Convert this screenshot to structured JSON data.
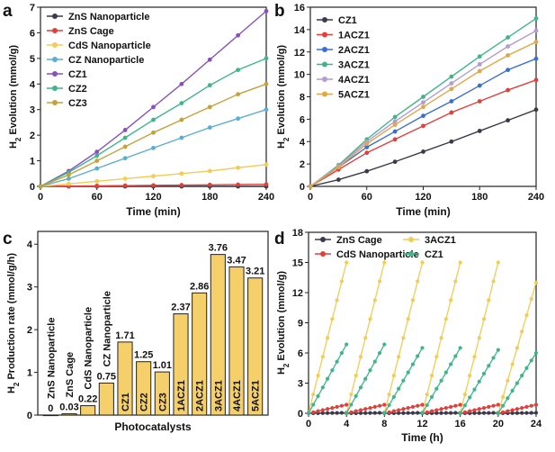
{
  "panel_letters": [
    "a",
    "b",
    "c",
    "d"
  ],
  "chart_data": [
    {
      "id": "a",
      "type": "line",
      "xlabel": "Time (min)",
      "ylabel": "H2 Evolution (mmol/g)",
      "ylabel_main": "H",
      "ylabel_sub": "2",
      "ylabel_rest": " Evolution (mmol/g)",
      "xlim": [
        0,
        240
      ],
      "ylim": [
        0,
        7
      ],
      "xticks": [
        0,
        60,
        120,
        180,
        240
      ],
      "yticks": [
        0,
        1,
        2,
        3,
        4,
        5,
        6,
        7
      ],
      "legend_position": "top-left",
      "x": [
        0,
        30,
        60,
        90,
        120,
        150,
        180,
        210,
        240
      ],
      "series": [
        {
          "name": "ZnS Nanoparticle",
          "color": "#3a3a4a",
          "values": [
            0,
            0,
            0,
            0,
            0,
            0,
            0,
            0,
            0
          ]
        },
        {
          "name": "ZnS Cage",
          "color": "#e0403c",
          "values": [
            0,
            0.01,
            0.02,
            0.03,
            0.04,
            0.05,
            0.06,
            0.07,
            0.08
          ]
        },
        {
          "name": "CdS Nanoparticle",
          "color": "#f2cc55",
          "values": [
            0,
            0.1,
            0.2,
            0.3,
            0.4,
            0.5,
            0.6,
            0.73,
            0.85
          ]
        },
        {
          "name": "CZ Nanoparticle",
          "color": "#5aaed0",
          "values": [
            0,
            0.3,
            0.7,
            1.1,
            1.5,
            1.9,
            2.3,
            2.65,
            3.0
          ]
        },
        {
          "name": "CZ1",
          "color": "#8a4fbf",
          "values": [
            0,
            0.6,
            1.35,
            2.2,
            3.1,
            4.0,
            4.95,
            5.9,
            6.85
          ]
        },
        {
          "name": "CZ2",
          "color": "#3fb58a",
          "values": [
            0,
            0.55,
            1.2,
            1.9,
            2.6,
            3.25,
            3.95,
            4.55,
            5.0
          ]
        },
        {
          "name": "CZ3",
          "color": "#c4a23a",
          "values": [
            0,
            0.45,
            1.0,
            1.55,
            2.1,
            2.6,
            3.1,
            3.6,
            4.0
          ]
        }
      ]
    },
    {
      "id": "b",
      "type": "line",
      "xlabel": "Time (min)",
      "ylabel": "H2 Evolution (mmol/g)",
      "ylabel_main": "H",
      "ylabel_sub": "2",
      "ylabel_rest": " Evolution (mmol/g)",
      "xlim": [
        0,
        240
      ],
      "ylim": [
        0,
        16
      ],
      "xticks": [
        0,
        60,
        120,
        180,
        240
      ],
      "yticks": [
        0,
        2,
        4,
        6,
        8,
        10,
        12,
        14,
        16
      ],
      "legend_position": "top-left",
      "x": [
        0,
        30,
        60,
        90,
        120,
        150,
        180,
        210,
        240
      ],
      "series": [
        {
          "name": "CZ1",
          "color": "#3a3a4a",
          "values": [
            0,
            0.6,
            1.35,
            2.2,
            3.1,
            4.0,
            4.95,
            5.9,
            6.85
          ]
        },
        {
          "name": "1ACZ1",
          "color": "#e0403c",
          "values": [
            0,
            1.5,
            3.0,
            4.2,
            5.4,
            6.6,
            7.6,
            8.6,
            9.5
          ]
        },
        {
          "name": "2ACZ1",
          "color": "#3a6fd0",
          "values": [
            0,
            1.7,
            3.5,
            4.9,
            6.3,
            7.6,
            9.0,
            10.4,
            11.4
          ]
        },
        {
          "name": "3ACZ1",
          "color": "#3fb58a",
          "values": [
            0,
            1.9,
            4.2,
            6.2,
            8.0,
            9.8,
            11.6,
            13.3,
            15.0
          ]
        },
        {
          "name": "4ACZ1",
          "color": "#b69ad0",
          "values": [
            0,
            1.8,
            4.0,
            5.8,
            7.5,
            9.2,
            10.9,
            12.5,
            13.9
          ]
        },
        {
          "name": "5ACZ1",
          "color": "#e0a64a",
          "values": [
            0,
            1.7,
            3.8,
            5.5,
            7.1,
            8.7,
            10.3,
            11.7,
            12.9
          ]
        }
      ]
    },
    {
      "id": "c",
      "type": "bar",
      "xlabel": "Photocatalysts",
      "ylabel": "H2 Production rate (mmol/g/h)",
      "ylabel_main": "H",
      "ylabel_sub": "2",
      "ylabel_rest": " Production rate (mmol/g/h)",
      "ylim": [
        0,
        4.3
      ],
      "yticks": [
        0,
        1,
        2,
        3,
        4
      ],
      "categories": [
        "ZnS Nanoparticle",
        "ZnS Cage",
        "CdS Nanoparticle",
        "CZ Nanoparticle",
        "CZ1",
        "CZ2",
        "CZ3",
        "1ACZ1",
        "2ACZ1",
        "3ACZ1",
        "4ACZ1",
        "5ACZ1"
      ],
      "values": [
        0,
        0.03,
        0.22,
        0.75,
        1.71,
        1.25,
        1.01,
        2.37,
        2.86,
        3.76,
        3.47,
        3.21
      ],
      "data_labels": [
        "0",
        "0.03",
        "0.22",
        "0.75",
        "1.71",
        "1.25",
        "1.01",
        "2.37",
        "2.86",
        "3.76",
        "3.47",
        "3.21"
      ],
      "bar_color": "#f5cf6a"
    },
    {
      "id": "d",
      "type": "line",
      "xlabel": "Time (h)",
      "ylabel": "H2 Evolution (mmol/g)",
      "ylabel_main": "H",
      "ylabel_sub": "2",
      "ylabel_rest": " Evolution (mmol/g)",
      "xlim": [
        0,
        24
      ],
      "ylim": [
        0,
        18
      ],
      "xticks": [
        0,
        4,
        8,
        12,
        16,
        20,
        24
      ],
      "yticks": [
        0,
        3,
        6,
        9,
        12,
        15,
        18
      ],
      "legend_position": "top",
      "cycles": 6,
      "cycle_hours": 4,
      "series": [
        {
          "name": "ZnS Cage",
          "color": "#3a3a4a",
          "cycle_max": [
            0.05,
            0.05,
            0.05,
            0.05,
            0.05,
            0.05
          ]
        },
        {
          "name": "3ACZ1",
          "color": "#f2cc55",
          "cycle_max": [
            15.0,
            15.0,
            15.0,
            15.0,
            15.0,
            13.0
          ]
        },
        {
          "name": "CdS Nanoparticle",
          "color": "#e0403c",
          "cycle_max": [
            0.85,
            0.85,
            0.85,
            0.85,
            0.85,
            0.85
          ]
        },
        {
          "name": "CZ1",
          "color": "#3fb58a",
          "cycle_max": [
            6.85,
            6.85,
            6.5,
            6.5,
            6.3,
            6.0
          ]
        }
      ]
    }
  ]
}
